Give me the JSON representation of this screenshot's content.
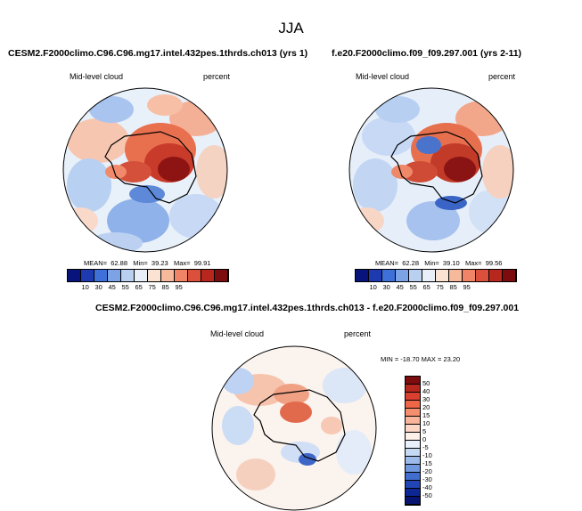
{
  "season": "JJA",
  "panels": [
    {
      "title": "CESM2.F2000climo.C96.C96.mg17.intel.432pes.1thrds.ch013 (yrs 1)",
      "variable": "Mid-level cloud",
      "units": "percent",
      "stats": {
        "mean_label": "MEAN=",
        "mean": "62.88",
        "min_label": "Min=",
        "min": "39.23",
        "max_label": "Max=",
        "max": "99.91"
      },
      "colorbar": {
        "labels": [
          "10",
          "30",
          "45",
          "55",
          "65",
          "75",
          "85",
          "95"
        ],
        "colors": [
          "#08147c",
          "#1d3ab0",
          "#3f6fd8",
          "#7ba3e6",
          "#b9d0f0",
          "#e8eff8",
          "#fbe3d3",
          "#f7b99c",
          "#ef8566",
          "#dc4f3a",
          "#b8271d",
          "#7d0c0f"
        ]
      }
    },
    {
      "title": "f.e20.F2000climo.f09_f09.297.001 (yrs 2-11)",
      "variable": "Mid-level cloud",
      "units": "percent",
      "stats": {
        "mean_label": "MEAN=",
        "mean": "62.28",
        "min_label": "Min=",
        "min": "39.10",
        "max_label": "Max=",
        "max": "99.56"
      },
      "colorbar": {
        "labels": [
          "10",
          "30",
          "45",
          "55",
          "65",
          "75",
          "85",
          "95"
        ],
        "colors": [
          "#08147c",
          "#1d3ab0",
          "#3f6fd8",
          "#7ba3e6",
          "#b9d0f0",
          "#e8eff8",
          "#fbe3d3",
          "#f7b99c",
          "#ef8566",
          "#dc4f3a",
          "#b8271d",
          "#7d0c0f"
        ]
      }
    },
    {
      "title": "CESM2.F2000climo.C96.C96.mg17.intel.432pes.1thrds.ch013 - f.e20.F2000climo.f09_f09.297.001",
      "variable": "Mid-level cloud",
      "units": "percent",
      "stats_text": "MIN = -18.70  MAX =  23.20",
      "colorbar": {
        "labels": [
          "50",
          "40",
          "30",
          "20",
          "15",
          "10",
          "5",
          "0",
          "-5",
          "-10",
          "-15",
          "-20",
          "-30",
          "-40",
          "-50"
        ],
        "colors": [
          "#7d0c0f",
          "#b8271d",
          "#d94030",
          "#ee6648",
          "#f58e6e",
          "#f9b59a",
          "#fcd7c6",
          "#fdf0e8",
          "#e8f0fb",
          "#c6d9f3",
          "#9cbbea",
          "#6f98de",
          "#416ece",
          "#2145b4",
          "#0d2894",
          "#071570"
        ]
      }
    }
  ]
}
